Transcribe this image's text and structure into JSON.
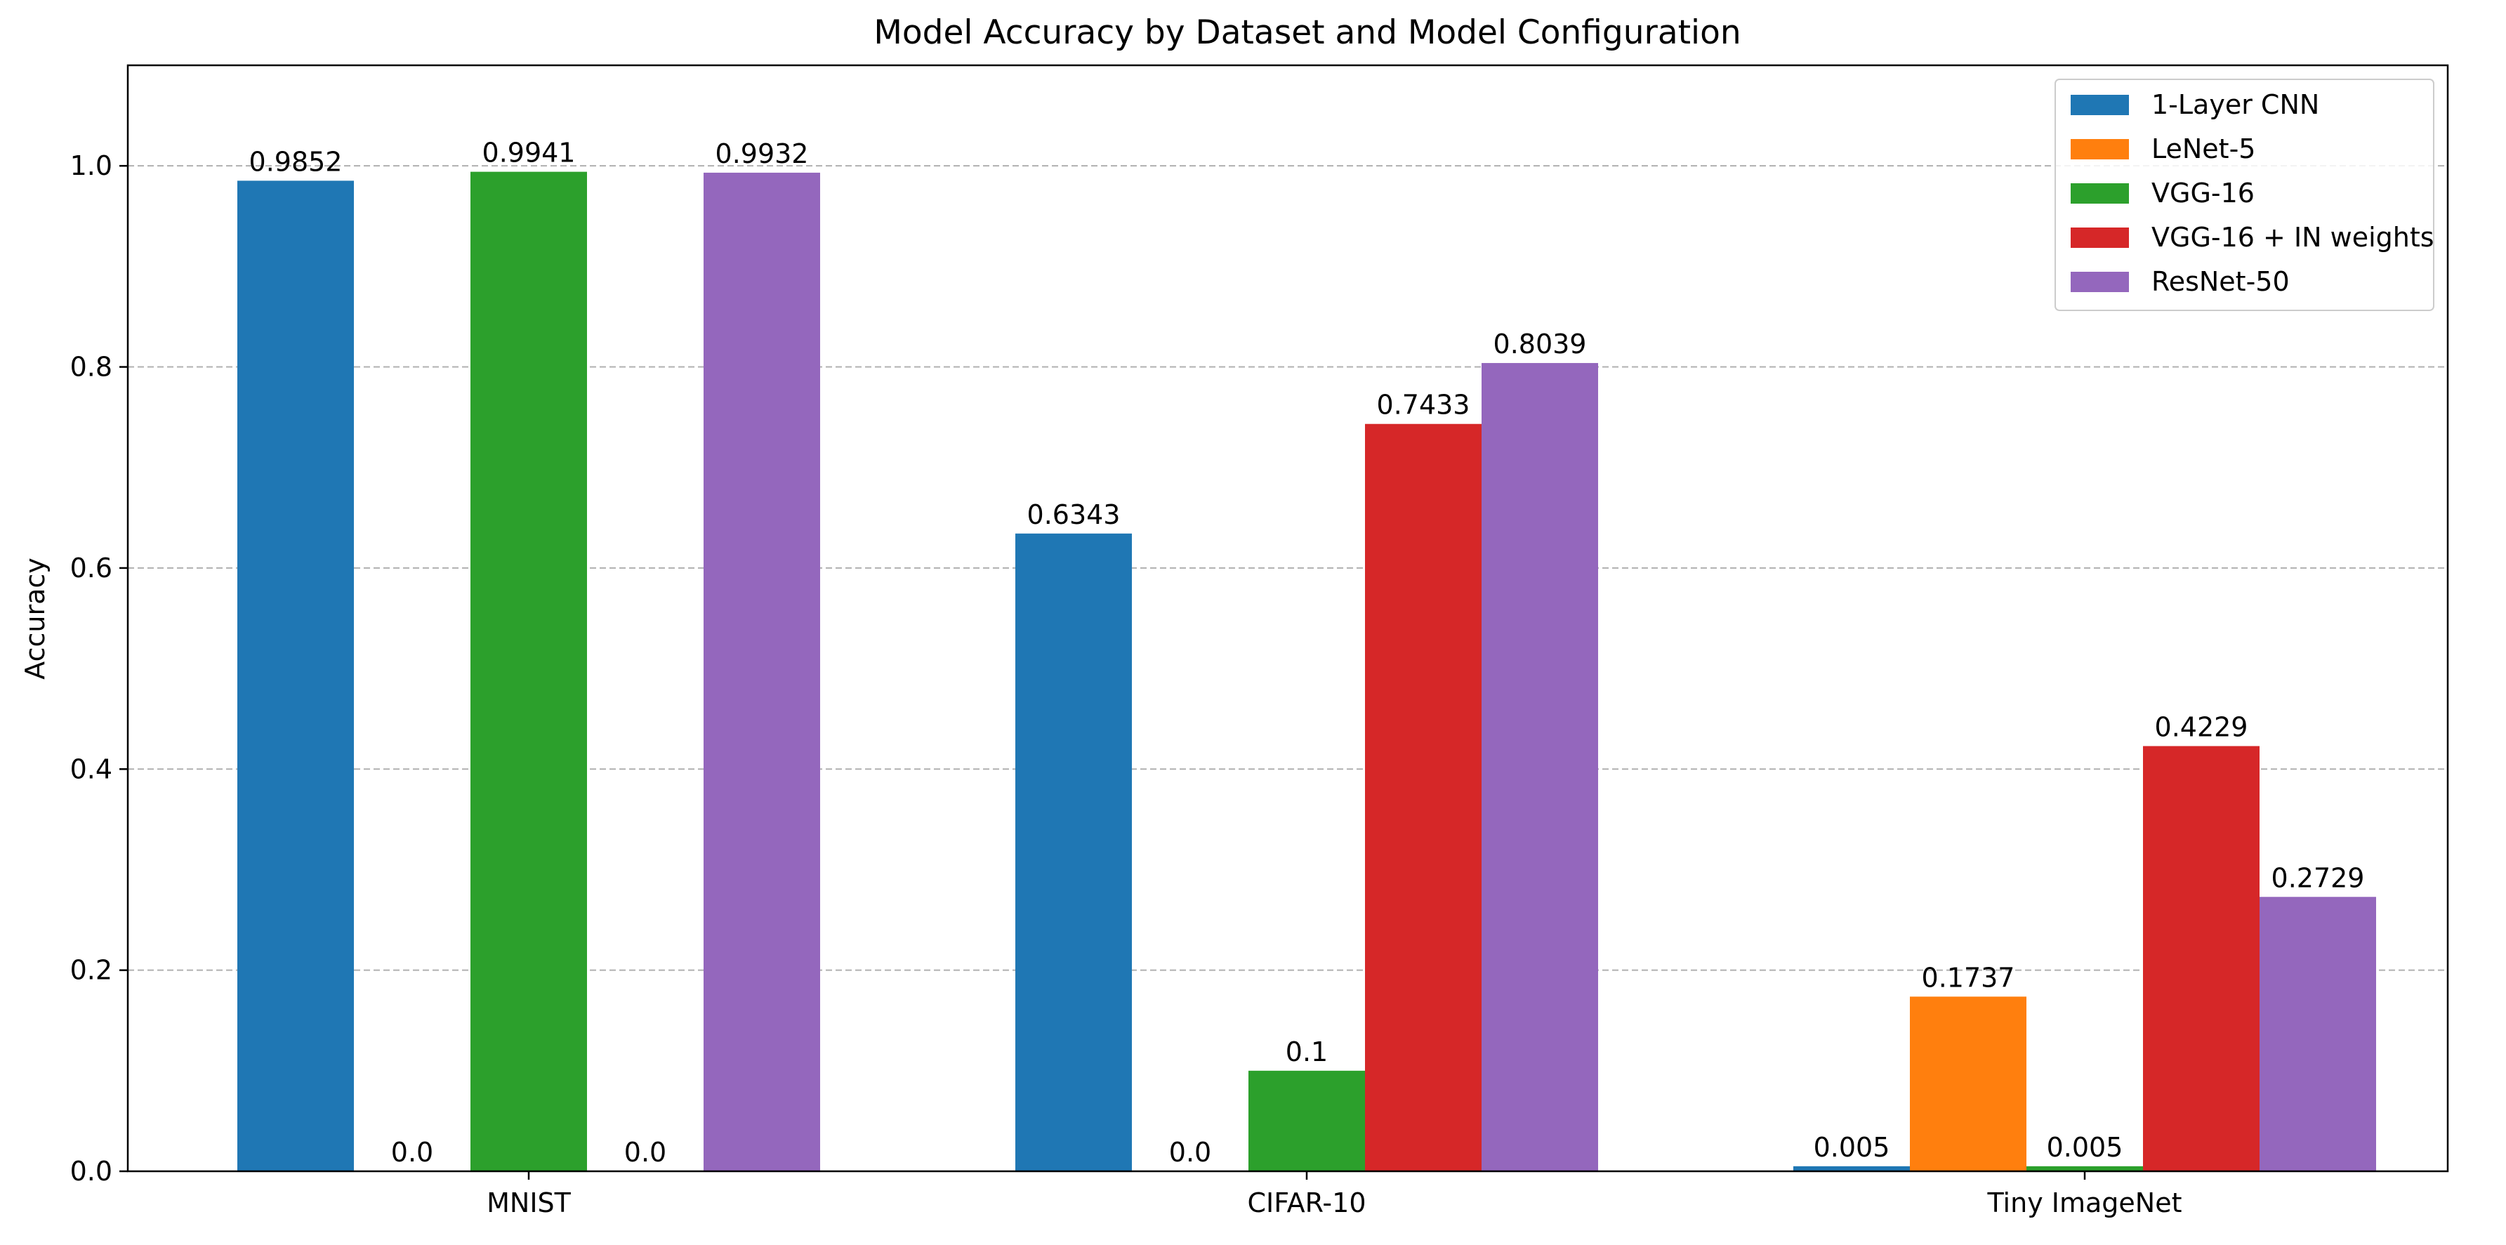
{
  "chart_data": {
    "type": "bar",
    "title": "Model Accuracy by Dataset and Model Configuration",
    "xlabel": "",
    "ylabel": "Accuracy",
    "categories": [
      "MNIST",
      "CIFAR-10",
      "Tiny ImageNet"
    ],
    "series": [
      {
        "name": "1-Layer CNN",
        "color": "#1f77b4",
        "values": [
          0.9852,
          0.6343,
          0.005
        ],
        "labels": [
          "0.9852",
          "0.6343",
          "0.005"
        ]
      },
      {
        "name": "LeNet-5",
        "color": "#ff7f0e",
        "values": [
          0.0,
          0.0,
          0.1737
        ],
        "labels": [
          "0.0",
          "0.0",
          "0.1737"
        ]
      },
      {
        "name": "VGG-16",
        "color": "#2ca02c",
        "values": [
          0.9941,
          0.1,
          0.005
        ],
        "labels": [
          "0.9941",
          "0.1",
          "0.005"
        ]
      },
      {
        "name": "VGG-16 + IN weights",
        "color": "#d62728",
        "values": [
          0.0,
          0.7433,
          0.4229
        ],
        "labels": [
          "0.0",
          "0.7433",
          "0.4229"
        ]
      },
      {
        "name": "ResNet-50",
        "color": "#9467bd",
        "values": [
          0.9932,
          0.8039,
          0.2729
        ],
        "labels": [
          "0.9932",
          "0.8039",
          "0.2729"
        ]
      }
    ],
    "ylim": [
      0,
      1.1
    ],
    "yticks": [
      "0.0",
      "0.2",
      "0.4",
      "0.6",
      "0.8",
      "1.0"
    ],
    "grid": "y dashed",
    "legend_position": "top-right"
  }
}
